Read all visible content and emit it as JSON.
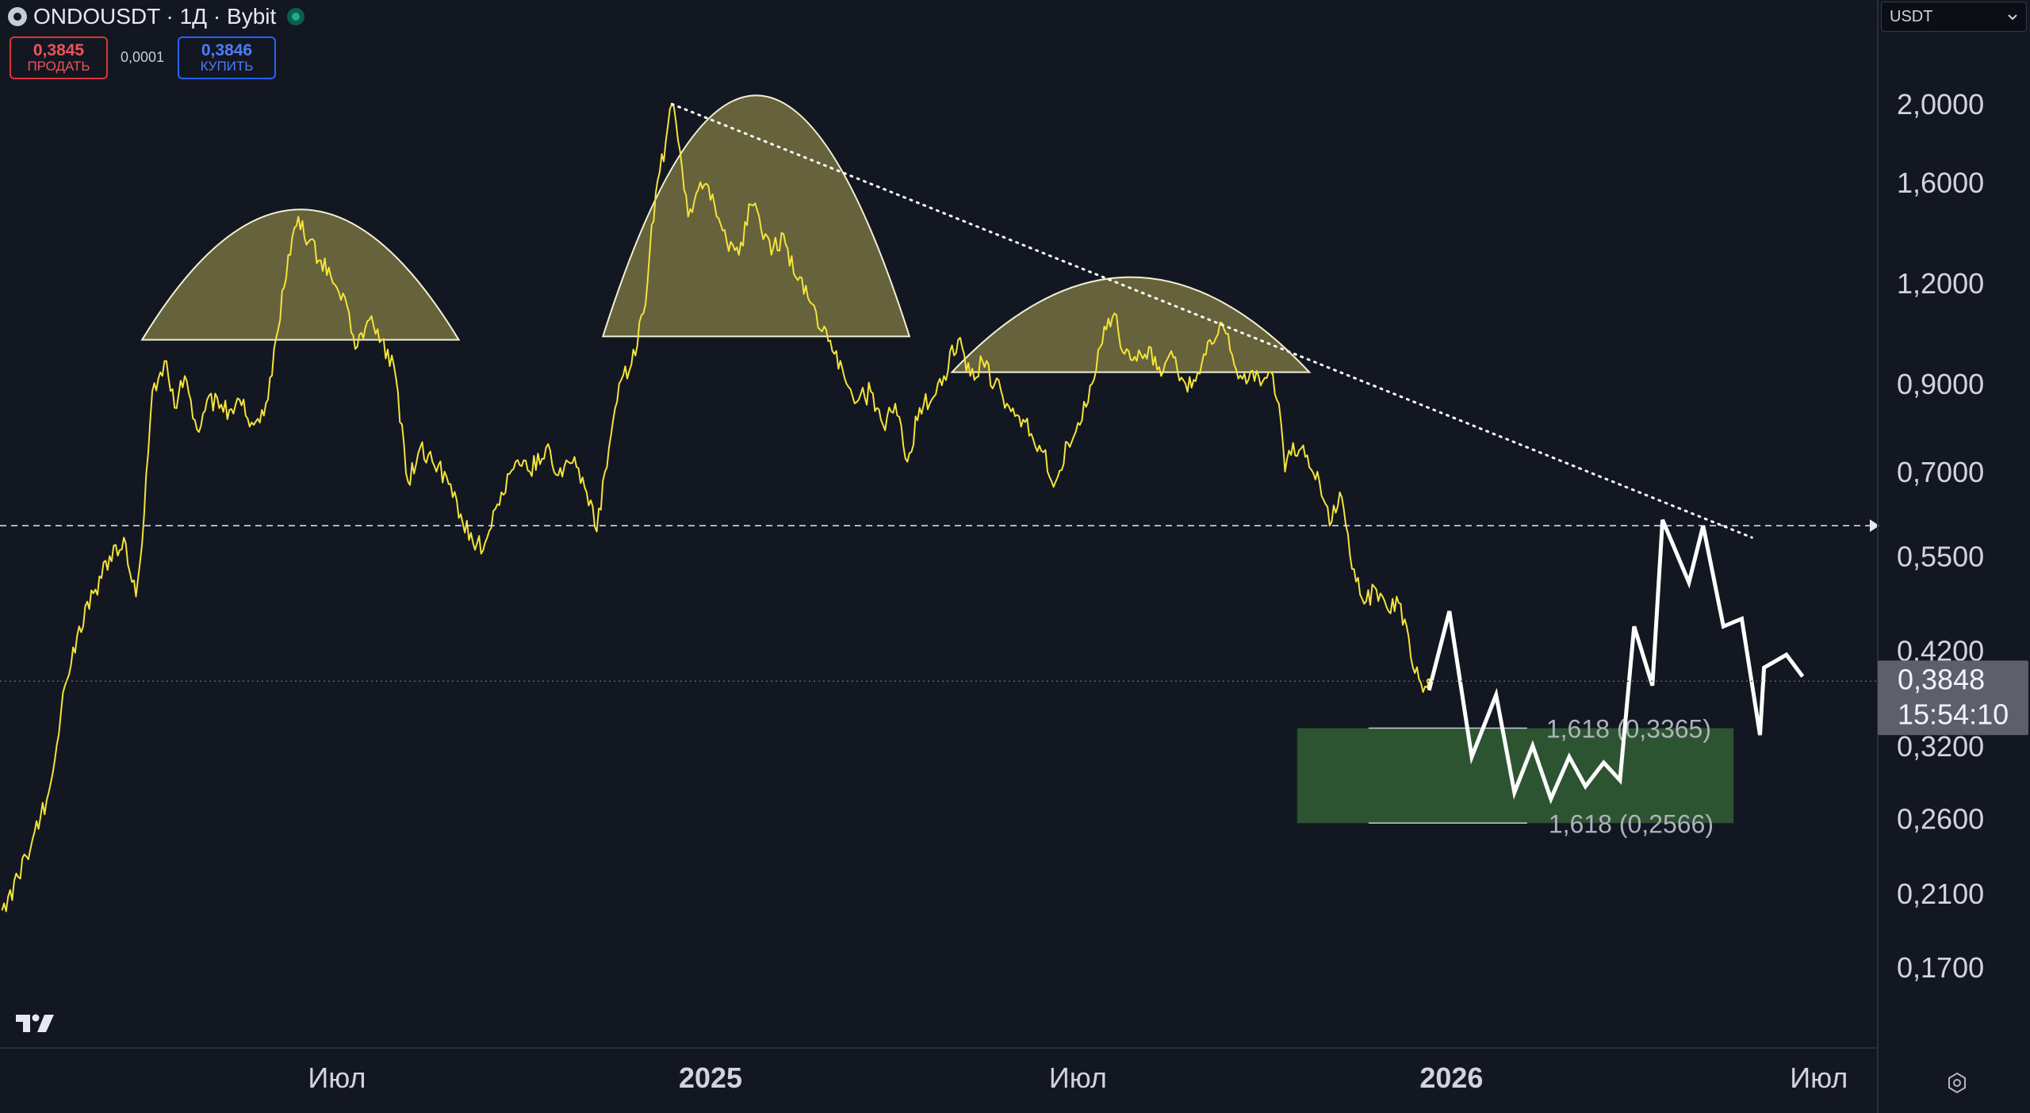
{
  "header": {
    "title": "ONDOUSDT · 1Д · Bybit",
    "sell_price": "0,3845",
    "sell_label": "ПРОДАТЬ",
    "spread": "0,0001",
    "buy_price": "0,3846",
    "buy_label": "КУПИТЬ"
  },
  "currency": "USDT",
  "colors": {
    "background": "#131722",
    "price_line": "#f3e33a",
    "forecast_line": "#ffffff",
    "arc_fill": "#7d7744",
    "target_zone": "#2e5733",
    "sell": "#f2525a",
    "buy": "#4f7bff"
  },
  "icons": [
    "exchange-logo-icon",
    "market-status-icon",
    "chevron-down-icon",
    "tradingview-logo-icon",
    "settings-icon"
  ],
  "chart_data": {
    "type": "line",
    "title": "ONDOUSDT · 1Д · Bybit",
    "y_scale": "log",
    "ylim": [
      0.135,
      2.35
    ],
    "y_ticks": [
      {
        "value": 2.0,
        "label": "2,0000"
      },
      {
        "value": 1.6,
        "label": "1,6000"
      },
      {
        "value": 1.2,
        "label": "1,2000"
      },
      {
        "value": 0.9,
        "label": "0,9000"
      },
      {
        "value": 0.7,
        "label": "0,7000"
      },
      {
        "value": 0.55,
        "label": "0,5500"
      },
      {
        "value": 0.42,
        "label": "0,4200"
      },
      {
        "value": 0.32,
        "label": "0,3200"
      },
      {
        "value": 0.26,
        "label": "0,2600"
      },
      {
        "value": 0.21,
        "label": "0,2100"
      },
      {
        "value": 0.17,
        "label": "0,1700"
      }
    ],
    "xlim": [
      "2024-01-17",
      "2026-07-30"
    ],
    "x_ticks": [
      {
        "date": "2024-07-01",
        "label": "Июл",
        "bold": false
      },
      {
        "date": "2025-01-01",
        "label": "2025",
        "bold": true
      },
      {
        "date": "2025-07-01",
        "label": "Июл",
        "bold": false
      },
      {
        "date": "2026-01-01",
        "label": "2026",
        "bold": true
      },
      {
        "date": "2026-07-01",
        "label": "Июл",
        "bold": false
      }
    ],
    "current": {
      "price": "0,3848",
      "timer": "15:54:10",
      "value": 0.3848
    },
    "horizontal_level": 0.6,
    "series": [
      {
        "points": [
          [
            "2024-01-18",
            0.2
          ],
          [
            "2024-01-26",
            0.22
          ],
          [
            "2024-02-03",
            0.25
          ],
          [
            "2024-02-10",
            0.28
          ],
          [
            "2024-02-18",
            0.38
          ],
          [
            "2024-02-25",
            0.45
          ],
          [
            "2024-03-04",
            0.5
          ],
          [
            "2024-03-11",
            0.55
          ],
          [
            "2024-03-18",
            0.58
          ],
          [
            "2024-03-24",
            0.49
          ],
          [
            "2024-03-28",
            0.62
          ],
          [
            "2024-04-01",
            0.88
          ],
          [
            "2024-04-07",
            0.96
          ],
          [
            "2024-04-12",
            0.84
          ],
          [
            "2024-04-17",
            0.92
          ],
          [
            "2024-04-23",
            0.79
          ],
          [
            "2024-04-29",
            0.87
          ],
          [
            "2024-05-06",
            0.83
          ],
          [
            "2024-05-14",
            0.86
          ],
          [
            "2024-05-21",
            0.8
          ],
          [
            "2024-05-28",
            0.86
          ],
          [
            "2024-06-02",
            1.05
          ],
          [
            "2024-06-07",
            1.3
          ],
          [
            "2024-06-12",
            1.45
          ],
          [
            "2024-06-17",
            1.35
          ],
          [
            "2024-06-23",
            1.28
          ],
          [
            "2024-06-29",
            1.2
          ],
          [
            "2024-07-05",
            1.15
          ],
          [
            "2024-07-11",
            1.0
          ],
          [
            "2024-07-17",
            1.08
          ],
          [
            "2024-07-23",
            1.02
          ],
          [
            "2024-07-29",
            0.95
          ],
          [
            "2024-08-05",
            0.68
          ],
          [
            "2024-08-11",
            0.75
          ],
          [
            "2024-08-17",
            0.72
          ],
          [
            "2024-08-24",
            0.69
          ],
          [
            "2024-08-31",
            0.62
          ],
          [
            "2024-09-07",
            0.56
          ],
          [
            "2024-09-13",
            0.58
          ],
          [
            "2024-09-20",
            0.66
          ],
          [
            "2024-09-27",
            0.72
          ],
          [
            "2024-10-04",
            0.7
          ],
          [
            "2024-10-12",
            0.75
          ],
          [
            "2024-10-20",
            0.69
          ],
          [
            "2024-10-26",
            0.73
          ],
          [
            "2024-11-01",
            0.66
          ],
          [
            "2024-11-06",
            0.59
          ],
          [
            "2024-11-12",
            0.75
          ],
          [
            "2024-11-17",
            0.9
          ],
          [
            "2024-11-23",
            0.95
          ],
          [
            "2024-11-29",
            1.1
          ],
          [
            "2024-12-05",
            1.55
          ],
          [
            "2024-12-10",
            1.8
          ],
          [
            "2024-12-13",
            2.0
          ],
          [
            "2024-12-17",
            1.75
          ],
          [
            "2024-12-21",
            1.45
          ],
          [
            "2024-12-27",
            1.6
          ],
          [
            "2025-01-03",
            1.5
          ],
          [
            "2025-01-09",
            1.35
          ],
          [
            "2025-01-15",
            1.3
          ],
          [
            "2025-01-21",
            1.5
          ],
          [
            "2025-01-25",
            1.45
          ],
          [
            "2025-01-31",
            1.3
          ],
          [
            "2025-02-06",
            1.38
          ],
          [
            "2025-02-12",
            1.22
          ],
          [
            "2025-02-18",
            1.15
          ],
          [
            "2025-02-24",
            1.05
          ],
          [
            "2025-03-03",
            0.98
          ],
          [
            "2025-03-09",
            0.9
          ],
          [
            "2025-03-15",
            0.86
          ],
          [
            "2025-03-21",
            0.88
          ],
          [
            "2025-03-27",
            0.8
          ],
          [
            "2025-04-02",
            0.85
          ],
          [
            "2025-04-08",
            0.72
          ],
          [
            "2025-04-14",
            0.84
          ],
          [
            "2025-04-20",
            0.86
          ],
          [
            "2025-04-26",
            0.92
          ],
          [
            "2025-05-03",
            1.02
          ],
          [
            "2025-05-09",
            0.92
          ],
          [
            "2025-05-15",
            0.96
          ],
          [
            "2025-05-21",
            0.9
          ],
          [
            "2025-05-27",
            0.85
          ],
          [
            "2025-06-02",
            0.82
          ],
          [
            "2025-06-08",
            0.78
          ],
          [
            "2025-06-14",
            0.74
          ],
          [
            "2025-06-20",
            0.68
          ],
          [
            "2025-06-26",
            0.76
          ],
          [
            "2025-07-02",
            0.8
          ],
          [
            "2025-07-08",
            0.9
          ],
          [
            "2025-07-14",
            1.06
          ],
          [
            "2025-07-19",
            1.1
          ],
          [
            "2025-07-24",
            0.98
          ],
          [
            "2025-07-30",
            0.96
          ],
          [
            "2025-08-05",
            1.0
          ],
          [
            "2025-08-11",
            0.92
          ],
          [
            "2025-08-17",
            0.97
          ],
          [
            "2025-08-23",
            0.9
          ],
          [
            "2025-08-29",
            0.93
          ],
          [
            "2025-09-04",
            1.02
          ],
          [
            "2025-09-10",
            1.07
          ],
          [
            "2025-09-16",
            0.95
          ],
          [
            "2025-09-22",
            0.9
          ],
          [
            "2025-09-28",
            0.92
          ],
          [
            "2025-10-04",
            0.93
          ],
          [
            "2025-10-08",
            0.85
          ],
          [
            "2025-10-11",
            0.7
          ],
          [
            "2025-10-15",
            0.76
          ],
          [
            "2025-10-21",
            0.73
          ],
          [
            "2025-10-27",
            0.7
          ],
          [
            "2025-11-02",
            0.6
          ],
          [
            "2025-11-07",
            0.66
          ],
          [
            "2025-11-13",
            0.53
          ],
          [
            "2025-11-19",
            0.48
          ],
          [
            "2025-11-25",
            0.5
          ],
          [
            "2025-12-01",
            0.47
          ],
          [
            "2025-12-07",
            0.48
          ],
          [
            "2025-12-13",
            0.4
          ],
          [
            "2025-12-18",
            0.373
          ],
          [
            "2025-12-21",
            0.3848
          ]
        ]
      },
      {
        "points": [
          [
            "2025-12-21",
            0.375
          ],
          [
            "2025-12-31",
            0.47
          ],
          [
            "2026-01-11",
            0.31
          ],
          [
            "2026-01-23",
            0.37
          ],
          [
            "2026-02-01",
            0.28
          ],
          [
            "2026-02-10",
            0.32
          ],
          [
            "2026-02-19",
            0.275
          ],
          [
            "2026-02-28",
            0.31
          ],
          [
            "2026-03-08",
            0.285
          ],
          [
            "2026-03-17",
            0.305
          ],
          [
            "2026-03-25",
            0.29
          ],
          [
            "2026-04-01",
            0.45
          ],
          [
            "2026-04-10",
            0.38
          ],
          [
            "2026-04-15",
            0.61
          ],
          [
            "2026-04-28",
            0.51
          ],
          [
            "2026-05-05",
            0.6
          ],
          [
            "2026-05-15",
            0.45
          ],
          [
            "2026-05-24",
            0.46
          ],
          [
            "2026-06-02",
            0.33
          ],
          [
            "2026-06-04",
            0.4
          ],
          [
            "2026-06-15",
            0.415
          ],
          [
            "2026-06-23",
            0.39
          ]
        ]
      }
    ],
    "arcs": [
      {
        "start": "2024-03-27",
        "end": "2024-08-30",
        "base": 1.02,
        "peak": 1.48
      },
      {
        "start": "2024-11-09",
        "end": "2025-04-09",
        "base": 1.03,
        "peak": 2.05
      },
      {
        "start": "2025-04-30",
        "end": "2025-10-23",
        "base": 0.93,
        "peak": 1.22
      }
    ],
    "trendline": {
      "from": [
        "2024-12-13",
        2.0
      ],
      "to": [
        "2026-05-29",
        0.58
      ]
    },
    "target_zone": {
      "from": "2025-10-17",
      "to": "2026-05-20",
      "top": 0.3365,
      "bottom": 0.2566
    },
    "fib_labels": [
      {
        "text": "1,618 (0,3365)",
        "value": 0.3365
      },
      {
        "text": "1,618 (0,2566)",
        "value": 0.2566
      }
    ]
  }
}
